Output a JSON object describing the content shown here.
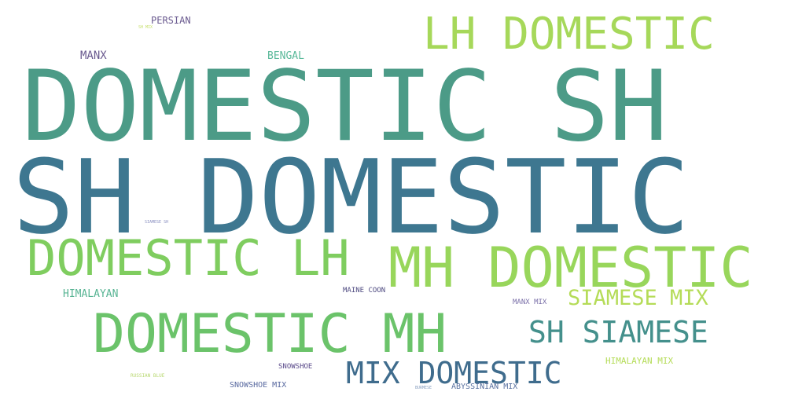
{
  "words": [
    {
      "text": "DOMESTIC SH",
      "color": "#4c9b87"
    },
    {
      "text": "SH DOMESTIC",
      "color": "#3e7790"
    },
    {
      "text": "LH DOMESTIC",
      "color": "#a6d85a"
    },
    {
      "text": "DOMESTIC LH",
      "color": "#7fcd5f"
    },
    {
      "text": "MH DOMESTIC",
      "color": "#98d65b"
    },
    {
      "text": "DOMESTIC MH",
      "color": "#6bc36a"
    },
    {
      "text": "SH SIAMESE",
      "color": "#44908c"
    },
    {
      "text": "SIAMESE MIX",
      "color": "#b5dc58"
    },
    {
      "text": "MIX DOMESTIC",
      "color": "#3f6c8d"
    },
    {
      "text": "PERSIAN",
      "color": "#6a5a8f"
    },
    {
      "text": "MANX",
      "color": "#6a5a8f"
    },
    {
      "text": "BENGAL",
      "color": "#5ab99a"
    },
    {
      "text": "HIMALAYAN",
      "color": "#57b493"
    },
    {
      "text": "HIMALAYAN MIX",
      "color": "#b5dc58"
    },
    {
      "text": "MANX MIX",
      "color": "#7a6fa8"
    },
    {
      "text": "MAINE COON",
      "color": "#4e4a80"
    },
    {
      "text": "SNOWSHOE",
      "color": "#5a4a8a"
    },
    {
      "text": "SNOWSHOE MIX",
      "color": "#5a6aa0"
    },
    {
      "text": "ABYSSINIAN MIX",
      "color": "#5a72a0"
    },
    {
      "text": "BURMESE",
      "color": "#8aa0c0"
    },
    {
      "text": "SH MIX",
      "color": "#c8e070"
    },
    {
      "text": "SIAMESE SH",
      "color": "#8a90c0"
    },
    {
      "text": "RUSSIAN BLUE",
      "color": "#b8d870"
    }
  ]
}
